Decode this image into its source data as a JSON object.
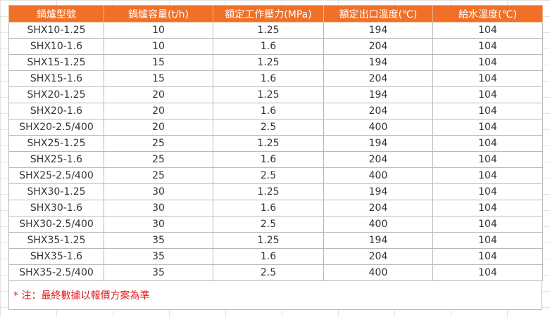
{
  "table": {
    "headers": [
      "鍋爐型號",
      "鍋爐容量(t/h)",
      "額定工作壓力(MPa)",
      "額定出口溫度(℃)",
      "給水溫度(℃)"
    ],
    "rows": [
      [
        "SHX10-1.25",
        "10",
        "1.25",
        "194",
        "104"
      ],
      [
        "SHX10-1.6",
        "10",
        "1.6",
        "204",
        "104"
      ],
      [
        "SHX15-1.25",
        "15",
        "1.25",
        "194",
        "104"
      ],
      [
        "SHX15-1.6",
        "15",
        "1.6",
        "204",
        "104"
      ],
      [
        "SHX20-1.25",
        "20",
        "1.25",
        "194",
        "104"
      ],
      [
        "SHX20-1.6",
        "20",
        "1.6",
        "204",
        "104"
      ],
      [
        "SHX20-2.5/400",
        "20",
        "2.5",
        "400",
        "104"
      ],
      [
        "SHX25-1.25",
        "25",
        "1.25",
        "194",
        "104"
      ],
      [
        "SHX25-1.6",
        "25",
        "1.6",
        "204",
        "104"
      ],
      [
        "SHX25-2.5/400",
        "25",
        "2.5",
        "400",
        "104"
      ],
      [
        "SHX30-1.25",
        "30",
        "1.25",
        "194",
        "104"
      ],
      [
        "SHX30-1.6",
        "30",
        "1.6",
        "204",
        "104"
      ],
      [
        "SHX30-2.5/400",
        "30",
        "2.5",
        "400",
        "104"
      ],
      [
        "SHX35-1.25",
        "35",
        "1.25",
        "194",
        "104"
      ],
      [
        "SHX35-1.6",
        "35",
        "1.6",
        "204",
        "104"
      ],
      [
        "SHX35-2.5/400",
        "35",
        "2.5",
        "400",
        "104"
      ]
    ]
  },
  "note": "* 注：最終數據以報價方案為準",
  "colors": {
    "header_bg": "#f07028",
    "header_text": "#ffffff",
    "note_text": "#e0191e"
  }
}
